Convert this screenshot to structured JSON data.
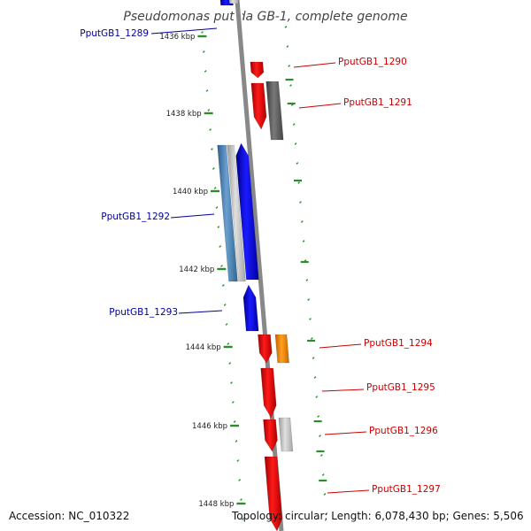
{
  "title": "Pseudomonas putida GB-1, complete genome",
  "footer": {
    "accession": "Accession: NC_010322",
    "summary": "Topology: circular; Length: 6,078,430 bp; Genes: 5,506"
  },
  "colors": {
    "forward": "#ff0000",
    "reverse": "#0000ff",
    "backbone": "#8c8c8c",
    "tick": "#2e8b2e",
    "forward_label": "#cc0000",
    "reverse_label": "#000099"
  },
  "ticks": [
    "1436 kbp",
    "1438 kbp",
    "1440 kbp",
    "1442 kbp",
    "1444 kbp",
    "1446 kbp",
    "1448 kbp"
  ],
  "genes": [
    {
      "label": "PputGB1_1289",
      "strand": "reverse"
    },
    {
      "label": "PputGB1_1290",
      "strand": "forward"
    },
    {
      "label": "PputGB1_1291",
      "strand": "forward"
    },
    {
      "label": "PputGB1_1292",
      "strand": "reverse"
    },
    {
      "label": "PputGB1_1293",
      "strand": "reverse"
    },
    {
      "label": "PputGB1_1294",
      "strand": "forward"
    },
    {
      "label": "PputGB1_1295",
      "strand": "forward"
    },
    {
      "label": "PputGB1_1296",
      "strand": "forward"
    },
    {
      "label": "PputGB1_1297",
      "strand": "forward"
    }
  ]
}
